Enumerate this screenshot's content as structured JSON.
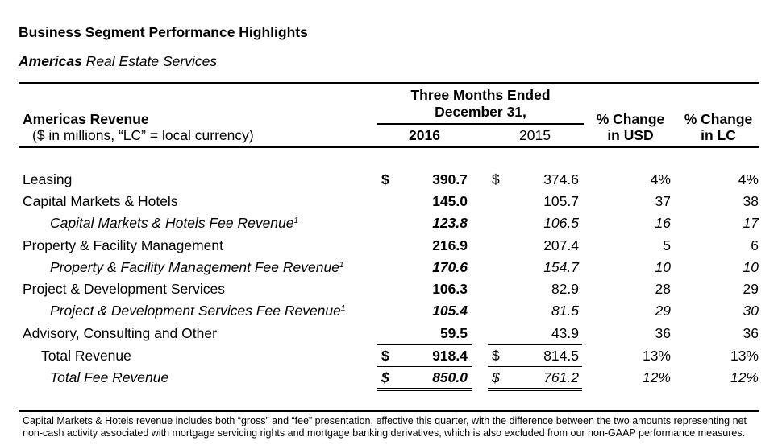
{
  "title": "Business Segment Performance Highlights",
  "subtitle": {
    "bold": "Americas",
    "rest": " Real Estate Services"
  },
  "header": {
    "revenue_label": "Americas Revenue",
    "units_label": "($ in millions, “LC” = local currency)",
    "period_line1": "Three Months Ended",
    "period_line2": "December 31,",
    "year_current": "2016",
    "year_prior": "2015",
    "pct_usd_line1": "% Change",
    "pct_usd_line2": "in USD",
    "pct_lc_line1": "% Change",
    "pct_lc_line2": "in LC"
  },
  "rows": [
    {
      "label": "Leasing",
      "sup": "",
      "sym1": "$",
      "v2016": "390.7",
      "sym2": "$",
      "v2015": "374.6",
      "pusd": "4%",
      "plc": "4%"
    },
    {
      "label": "Capital Markets & Hotels",
      "sup": "",
      "sym1": "",
      "v2016": "145.0",
      "sym2": "",
      "v2015": "105.7",
      "pusd": "37",
      "plc": "38"
    },
    {
      "label": "Capital Markets & Hotels Fee Revenue",
      "sup": "1",
      "sym1": "",
      "v2016": "123.8",
      "sym2": "",
      "v2015": "106.5",
      "pusd": "16",
      "plc": "17"
    },
    {
      "label": "Property & Facility Management",
      "sup": "",
      "sym1": "",
      "v2016": "216.9",
      "sym2": "",
      "v2015": "207.4",
      "pusd": "5",
      "plc": "6"
    },
    {
      "label": "Property & Facility Management Fee Revenue",
      "sup": "1",
      "sym1": "",
      "v2016": "170.6",
      "sym2": "",
      "v2015": "154.7",
      "pusd": "10",
      "plc": "10"
    },
    {
      "label": "Project & Development Services",
      "sup": "",
      "sym1": "",
      "v2016": "106.3",
      "sym2": "",
      "v2015": "82.9",
      "pusd": "28",
      "plc": "29"
    },
    {
      "label": "Project & Development Services Fee Revenue",
      "sup": "1",
      "sym1": "",
      "v2016": "105.4",
      "sym2": "",
      "v2015": "81.5",
      "pusd": "29",
      "plc": "30"
    },
    {
      "label": "Advisory, Consulting and Other",
      "sup": "",
      "sym1": "",
      "v2016": "59.5",
      "sym2": "",
      "v2015": "43.9",
      "pusd": "36",
      "plc": "36"
    },
    {
      "label": "Total Revenue",
      "sup": "",
      "sym1": "$",
      "v2016": "918.4",
      "sym2": "$",
      "v2015": "814.5",
      "pusd": "13%",
      "plc": "13%"
    },
    {
      "label": "Total Fee Revenue",
      "sup": "",
      "sym1": "$",
      "v2016": "850.0",
      "sym2": "$",
      "v2015": "761.2",
      "pusd": "12%",
      "plc": "12%"
    }
  ],
  "footnote": "Capital Markets & Hotels revenue includes both “gross” and “fee” presentation, effective this quarter, with the difference between the two amounts representing net non-cash activity associated with mortgage servicing rights and mortgage banking derivatives, which is also excluded from our non-GAAP performance measures."
}
